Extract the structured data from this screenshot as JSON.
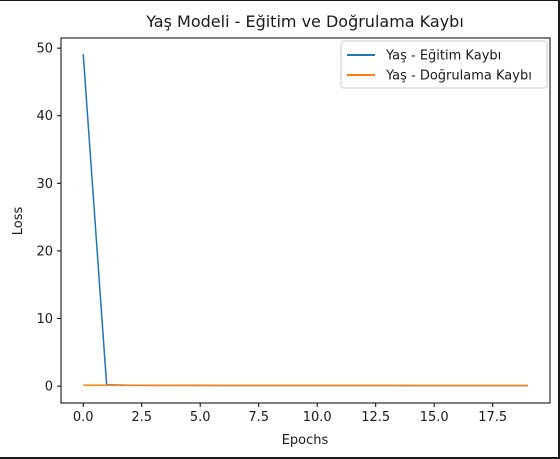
{
  "chart_data": {
    "type": "line",
    "title": "Yaş Modeli - Eğitim ve Doğrulama Kaybı",
    "xlabel": "Epochs",
    "ylabel": "Loss",
    "xlim": [
      -0.95,
      19.95
    ],
    "ylim": [
      -2.5,
      51.5
    ],
    "xticks": [
      0,
      2.5,
      5,
      7.5,
      10,
      12.5,
      15,
      17.5
    ],
    "xtick_labels": [
      "0.0",
      "2.5",
      "5.0",
      "7.5",
      "10.0",
      "12.5",
      "15.0",
      "17.5"
    ],
    "yticks": [
      0,
      10,
      20,
      30,
      40,
      50
    ],
    "ytick_labels": [
      "0",
      "10",
      "20",
      "30",
      "40",
      "50"
    ],
    "grid": false,
    "legend_position": "top-right",
    "x": [
      0,
      1,
      2,
      3,
      4,
      5,
      6,
      7,
      8,
      9,
      10,
      11,
      12,
      13,
      14,
      15,
      16,
      17,
      18,
      19
    ],
    "series": [
      {
        "name": "Yaş - Eğitim Kaybı",
        "color": "#1f77b4",
        "values": [
          49.1,
          0.2,
          0.12,
          0.11,
          0.1,
          0.1,
          0.09,
          0.09,
          0.09,
          0.08,
          0.08,
          0.08,
          0.08,
          0.08,
          0.07,
          0.07,
          0.07,
          0.07,
          0.07,
          0.07
        ]
      },
      {
        "name": "Yaş - Doğrulama Kaybı",
        "color": "#ff7f0e",
        "values": [
          0.15,
          0.12,
          0.1,
          0.1,
          0.1,
          0.09,
          0.09,
          0.09,
          0.09,
          0.08,
          0.08,
          0.08,
          0.08,
          0.08,
          0.08,
          0.08,
          0.08,
          0.08,
          0.08,
          0.08
        ]
      }
    ]
  }
}
